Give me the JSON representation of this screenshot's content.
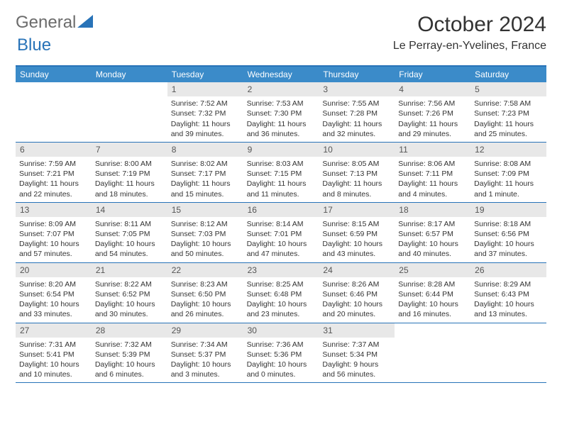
{
  "brand": {
    "name_part1": "General",
    "name_part2": "Blue",
    "text_color": "#6b6b6b",
    "blue_color": "#2873b8"
  },
  "header": {
    "month_title": "October 2024",
    "location": "Le Perray-en-Yvelines, France",
    "title_fontsize": 30,
    "location_fontsize": 16
  },
  "styling": {
    "header_bg": "#3b8bc9",
    "header_text": "#ffffff",
    "day_number_bg": "#e8e8e8",
    "border_color": "#2873b8",
    "body_text_color": "#333333",
    "cell_fontsize": 10.5,
    "weekday_fontsize": 12
  },
  "weekdays": [
    "Sunday",
    "Monday",
    "Tuesday",
    "Wednesday",
    "Thursday",
    "Friday",
    "Saturday"
  ],
  "weeks": [
    [
      {
        "n": "",
        "sunrise": "",
        "sunset": "",
        "daylight": ""
      },
      {
        "n": "",
        "sunrise": "",
        "sunset": "",
        "daylight": ""
      },
      {
        "n": "1",
        "sunrise": "Sunrise: 7:52 AM",
        "sunset": "Sunset: 7:32 PM",
        "daylight": "Daylight: 11 hours and 39 minutes."
      },
      {
        "n": "2",
        "sunrise": "Sunrise: 7:53 AM",
        "sunset": "Sunset: 7:30 PM",
        "daylight": "Daylight: 11 hours and 36 minutes."
      },
      {
        "n": "3",
        "sunrise": "Sunrise: 7:55 AM",
        "sunset": "Sunset: 7:28 PM",
        "daylight": "Daylight: 11 hours and 32 minutes."
      },
      {
        "n": "4",
        "sunrise": "Sunrise: 7:56 AM",
        "sunset": "Sunset: 7:26 PM",
        "daylight": "Daylight: 11 hours and 29 minutes."
      },
      {
        "n": "5",
        "sunrise": "Sunrise: 7:58 AM",
        "sunset": "Sunset: 7:23 PM",
        "daylight": "Daylight: 11 hours and 25 minutes."
      }
    ],
    [
      {
        "n": "6",
        "sunrise": "Sunrise: 7:59 AM",
        "sunset": "Sunset: 7:21 PM",
        "daylight": "Daylight: 11 hours and 22 minutes."
      },
      {
        "n": "7",
        "sunrise": "Sunrise: 8:00 AM",
        "sunset": "Sunset: 7:19 PM",
        "daylight": "Daylight: 11 hours and 18 minutes."
      },
      {
        "n": "8",
        "sunrise": "Sunrise: 8:02 AM",
        "sunset": "Sunset: 7:17 PM",
        "daylight": "Daylight: 11 hours and 15 minutes."
      },
      {
        "n": "9",
        "sunrise": "Sunrise: 8:03 AM",
        "sunset": "Sunset: 7:15 PM",
        "daylight": "Daylight: 11 hours and 11 minutes."
      },
      {
        "n": "10",
        "sunrise": "Sunrise: 8:05 AM",
        "sunset": "Sunset: 7:13 PM",
        "daylight": "Daylight: 11 hours and 8 minutes."
      },
      {
        "n": "11",
        "sunrise": "Sunrise: 8:06 AM",
        "sunset": "Sunset: 7:11 PM",
        "daylight": "Daylight: 11 hours and 4 minutes."
      },
      {
        "n": "12",
        "sunrise": "Sunrise: 8:08 AM",
        "sunset": "Sunset: 7:09 PM",
        "daylight": "Daylight: 11 hours and 1 minute."
      }
    ],
    [
      {
        "n": "13",
        "sunrise": "Sunrise: 8:09 AM",
        "sunset": "Sunset: 7:07 PM",
        "daylight": "Daylight: 10 hours and 57 minutes."
      },
      {
        "n": "14",
        "sunrise": "Sunrise: 8:11 AM",
        "sunset": "Sunset: 7:05 PM",
        "daylight": "Daylight: 10 hours and 54 minutes."
      },
      {
        "n": "15",
        "sunrise": "Sunrise: 8:12 AM",
        "sunset": "Sunset: 7:03 PM",
        "daylight": "Daylight: 10 hours and 50 minutes."
      },
      {
        "n": "16",
        "sunrise": "Sunrise: 8:14 AM",
        "sunset": "Sunset: 7:01 PM",
        "daylight": "Daylight: 10 hours and 47 minutes."
      },
      {
        "n": "17",
        "sunrise": "Sunrise: 8:15 AM",
        "sunset": "Sunset: 6:59 PM",
        "daylight": "Daylight: 10 hours and 43 minutes."
      },
      {
        "n": "18",
        "sunrise": "Sunrise: 8:17 AM",
        "sunset": "Sunset: 6:57 PM",
        "daylight": "Daylight: 10 hours and 40 minutes."
      },
      {
        "n": "19",
        "sunrise": "Sunrise: 8:18 AM",
        "sunset": "Sunset: 6:56 PM",
        "daylight": "Daylight: 10 hours and 37 minutes."
      }
    ],
    [
      {
        "n": "20",
        "sunrise": "Sunrise: 8:20 AM",
        "sunset": "Sunset: 6:54 PM",
        "daylight": "Daylight: 10 hours and 33 minutes."
      },
      {
        "n": "21",
        "sunrise": "Sunrise: 8:22 AM",
        "sunset": "Sunset: 6:52 PM",
        "daylight": "Daylight: 10 hours and 30 minutes."
      },
      {
        "n": "22",
        "sunrise": "Sunrise: 8:23 AM",
        "sunset": "Sunset: 6:50 PM",
        "daylight": "Daylight: 10 hours and 26 minutes."
      },
      {
        "n": "23",
        "sunrise": "Sunrise: 8:25 AM",
        "sunset": "Sunset: 6:48 PM",
        "daylight": "Daylight: 10 hours and 23 minutes."
      },
      {
        "n": "24",
        "sunrise": "Sunrise: 8:26 AM",
        "sunset": "Sunset: 6:46 PM",
        "daylight": "Daylight: 10 hours and 20 minutes."
      },
      {
        "n": "25",
        "sunrise": "Sunrise: 8:28 AM",
        "sunset": "Sunset: 6:44 PM",
        "daylight": "Daylight: 10 hours and 16 minutes."
      },
      {
        "n": "26",
        "sunrise": "Sunrise: 8:29 AM",
        "sunset": "Sunset: 6:43 PM",
        "daylight": "Daylight: 10 hours and 13 minutes."
      }
    ],
    [
      {
        "n": "27",
        "sunrise": "Sunrise: 7:31 AM",
        "sunset": "Sunset: 5:41 PM",
        "daylight": "Daylight: 10 hours and 10 minutes."
      },
      {
        "n": "28",
        "sunrise": "Sunrise: 7:32 AM",
        "sunset": "Sunset: 5:39 PM",
        "daylight": "Daylight: 10 hours and 6 minutes."
      },
      {
        "n": "29",
        "sunrise": "Sunrise: 7:34 AM",
        "sunset": "Sunset: 5:37 PM",
        "daylight": "Daylight: 10 hours and 3 minutes."
      },
      {
        "n": "30",
        "sunrise": "Sunrise: 7:36 AM",
        "sunset": "Sunset: 5:36 PM",
        "daylight": "Daylight: 10 hours and 0 minutes."
      },
      {
        "n": "31",
        "sunrise": "Sunrise: 7:37 AM",
        "sunset": "Sunset: 5:34 PM",
        "daylight": "Daylight: 9 hours and 56 minutes."
      },
      {
        "n": "",
        "sunrise": "",
        "sunset": "",
        "daylight": ""
      },
      {
        "n": "",
        "sunrise": "",
        "sunset": "",
        "daylight": ""
      }
    ]
  ]
}
